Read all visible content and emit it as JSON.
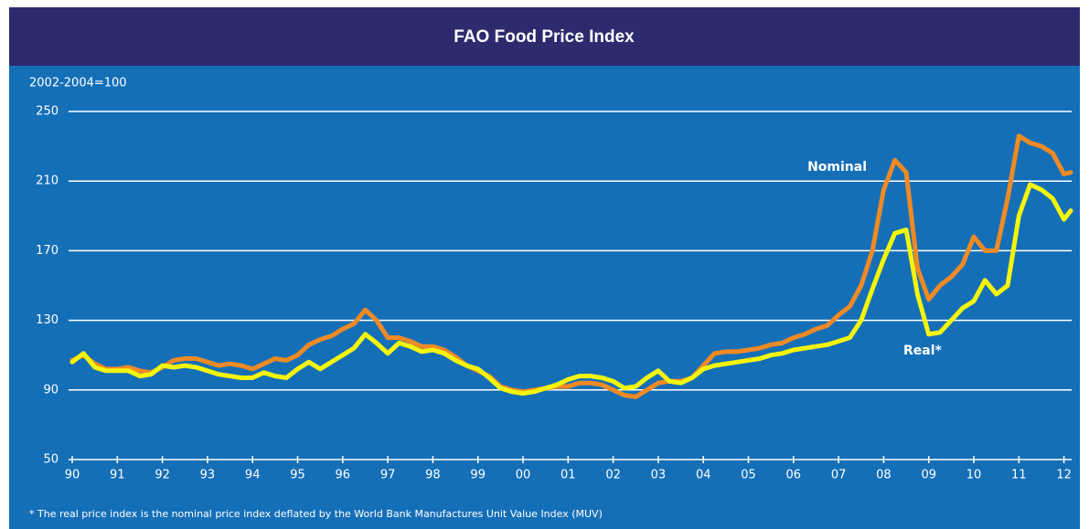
{
  "chart_data": {
    "type": "line",
    "title": "FAO Food Price Index",
    "subtitle": "2002-2004=100",
    "footnote": "* The real price index is the nominal price index deflated by the World Bank Manufactures Unit Value Index (MUV)",
    "x": [
      1990,
      1990.25,
      1990.5,
      1990.75,
      1991,
      1991.25,
      1991.5,
      1991.75,
      1992,
      1992.25,
      1992.5,
      1992.75,
      1993,
      1993.25,
      1993.5,
      1993.75,
      1994,
      1994.25,
      1994.5,
      1994.75,
      1995,
      1995.25,
      1995.5,
      1995.75,
      1996,
      1996.25,
      1996.5,
      1996.75,
      1997,
      1997.25,
      1997.5,
      1997.75,
      1998,
      1998.25,
      1998.5,
      1998.75,
      1999,
      1999.25,
      1999.5,
      1999.75,
      2000,
      2000.25,
      2000.5,
      2000.75,
      2001,
      2001.25,
      2001.5,
      2001.75,
      2002,
      2002.25,
      2002.5,
      2002.75,
      2003,
      2003.25,
      2003.5,
      2003.75,
      2004,
      2004.25,
      2004.5,
      2004.75,
      2005,
      2005.25,
      2005.5,
      2005.75,
      2006,
      2006.25,
      2006.5,
      2006.75,
      2007,
      2007.25,
      2007.5,
      2007.75,
      2008,
      2008.25,
      2008.5,
      2008.75,
      2009,
      2009.25,
      2009.5,
      2009.75,
      2010,
      2010.25,
      2010.5,
      2010.75,
      2011,
      2011.25,
      2011.5,
      2011.75,
      2012,
      2012.15
    ],
    "series": [
      {
        "name": "Nominal",
        "color": "#f08a24",
        "values": [
          107,
          110,
          105,
          102,
          102,
          103,
          101,
          100,
          103,
          107,
          108,
          108,
          106,
          104,
          105,
          104,
          102,
          105,
          108,
          107,
          110,
          116,
          119,
          121,
          125,
          128,
          136,
          130,
          120,
          120,
          118,
          115,
          115,
          113,
          109,
          104,
          101,
          98,
          92,
          90,
          89,
          90,
          91,
          92,
          92,
          94,
          94,
          93,
          90,
          87,
          86,
          90,
          94,
          95,
          95,
          97,
          104,
          111,
          112,
          112,
          113,
          114,
          116,
          117,
          120,
          122,
          125,
          127,
          133,
          138,
          150,
          170,
          205,
          222,
          215,
          160,
          142,
          150,
          155,
          162,
          178,
          170,
          170,
          200,
          236,
          232,
          230,
          226,
          214,
          215
        ]
      },
      {
        "name": "Real*",
        "color": "#f5f50a",
        "values": [
          106,
          111,
          103,
          101,
          101,
          101,
          98,
          99,
          104,
          103,
          104,
          103,
          101,
          99,
          98,
          97,
          97,
          100,
          98,
          97,
          102,
          106,
          102,
          106,
          110,
          114,
          122,
          117,
          111,
          117,
          115,
          112,
          113,
          111,
          107,
          104,
          102,
          97,
          91,
          89,
          88,
          89,
          91,
          93,
          96,
          98,
          98,
          97,
          95,
          91,
          92,
          97,
          101,
          95,
          94,
          97,
          102,
          104,
          105,
          106,
          107,
          108,
          110,
          111,
          113,
          114,
          115,
          116,
          118,
          120,
          130,
          148,
          165,
          180,
          182,
          145,
          122,
          123,
          130,
          137,
          141,
          153,
          145,
          150,
          190,
          208,
          205,
          200,
          188,
          193
        ]
      }
    ],
    "xlim": [
      1990,
      2012.17
    ],
    "xticks": [
      {
        "value": 1990,
        "label": "90"
      },
      {
        "value": 1991,
        "label": "91"
      },
      {
        "value": 1992,
        "label": "92"
      },
      {
        "value": 1993,
        "label": "93"
      },
      {
        "value": 1994,
        "label": "94"
      },
      {
        "value": 1995,
        "label": "95"
      },
      {
        "value": 1996,
        "label": "96"
      },
      {
        "value": 1997,
        "label": "97"
      },
      {
        "value": 1998,
        "label": "98"
      },
      {
        "value": 1999,
        "label": "99"
      },
      {
        "value": 2000,
        "label": "00"
      },
      {
        "value": 2001,
        "label": "01"
      },
      {
        "value": 2002,
        "label": "02"
      },
      {
        "value": 2003,
        "label": "03"
      },
      {
        "value": 2004,
        "label": "04"
      },
      {
        "value": 2005,
        "label": "05"
      },
      {
        "value": 2006,
        "label": "06"
      },
      {
        "value": 2007,
        "label": "07"
      },
      {
        "value": 2008,
        "label": "08"
      },
      {
        "value": 2009,
        "label": "09"
      },
      {
        "value": 2010,
        "label": "10"
      },
      {
        "value": 2011,
        "label": "11"
      },
      {
        "value": 2012,
        "label": "12"
      }
    ],
    "ylim": [
      50,
      250
    ],
    "yticks": [
      50,
      90,
      130,
      170,
      210,
      250
    ],
    "grid": true
  }
}
